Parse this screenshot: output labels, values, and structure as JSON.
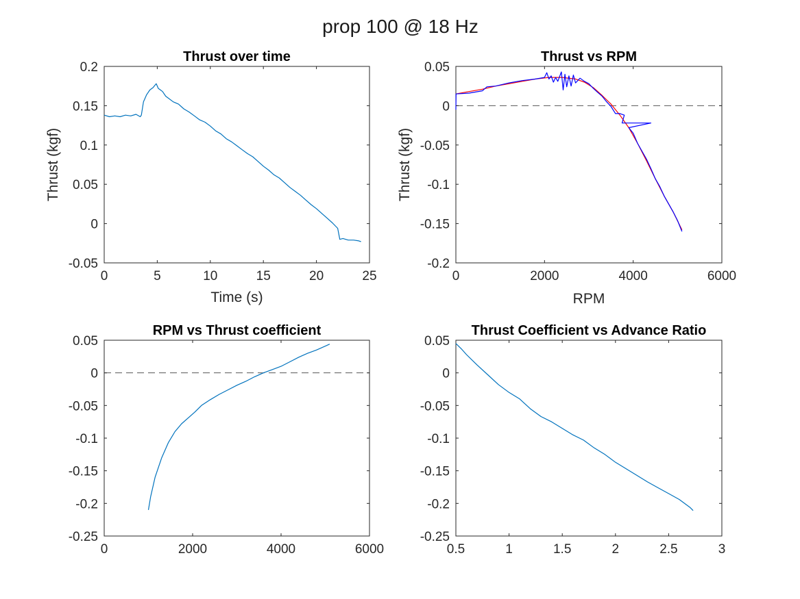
{
  "figure": {
    "title": "prop 100 @ 18 Hz"
  },
  "colors": {
    "matlab_blue": "#0072bd",
    "pure_blue": "#0000ff",
    "red": "#ff0000",
    "zero_line": "#555555",
    "axis": "#262626"
  },
  "chart_data": [
    {
      "type": "line",
      "title": "Thrust over time",
      "xlabel": "Time (s)",
      "ylabel": "Thrust (kgf)",
      "xlim": [
        0,
        25
      ],
      "ylim": [
        -0.05,
        0.2
      ],
      "xticks": [
        0,
        5,
        10,
        15,
        20,
        25
      ],
      "xtick_labels": [
        "0",
        "5",
        "10",
        "15",
        "20",
        "25"
      ],
      "yticks": [
        -0.05,
        0,
        0.05,
        0.1,
        0.15,
        0.2
      ],
      "ytick_labels": [
        "-0.05",
        "0",
        "0.05",
        "0.1",
        "0.15",
        "0.2"
      ],
      "grid": false,
      "series": [
        {
          "color": "#0072bd",
          "x": [
            0,
            0.5,
            1,
            1.5,
            2,
            2.5,
            3,
            3.4,
            3.5,
            3.7,
            4,
            4.3,
            4.6,
            4.9,
            5.1,
            5.3,
            5.5,
            5.8,
            6,
            6.5,
            7,
            7.5,
            8,
            8.5,
            9,
            9.5,
            10,
            10.5,
            11,
            11.5,
            12,
            12.5,
            13,
            13.5,
            14,
            14.5,
            15,
            15.5,
            16,
            16.5,
            17,
            17.5,
            18,
            18.5,
            19,
            19.5,
            20,
            20.5,
            21,
            21.5,
            22,
            22.2,
            22.5,
            23,
            23.5,
            24,
            24.2
          ],
          "y": [
            0.138,
            0.136,
            0.137,
            0.136,
            0.138,
            0.137,
            0.139,
            0.136,
            0.138,
            0.155,
            0.164,
            0.17,
            0.173,
            0.178,
            0.172,
            0.17,
            0.168,
            0.162,
            0.16,
            0.155,
            0.152,
            0.146,
            0.142,
            0.137,
            0.132,
            0.129,
            0.124,
            0.118,
            0.114,
            0.108,
            0.104,
            0.099,
            0.094,
            0.089,
            0.085,
            0.079,
            0.073,
            0.068,
            0.062,
            0.058,
            0.052,
            0.046,
            0.041,
            0.036,
            0.03,
            0.024,
            0.019,
            0.013,
            0.007,
            0.001,
            -0.006,
            -0.02,
            -0.019,
            -0.021,
            -0.021,
            -0.022,
            -0.023
          ]
        }
      ]
    },
    {
      "type": "line",
      "title": "Thrust vs RPM",
      "xlabel": "RPM",
      "ylabel": "Thrust (kgf)",
      "xlim": [
        0,
        6000
      ],
      "ylim": [
        -0.2,
        0.05
      ],
      "xticks": [
        0,
        2000,
        4000,
        6000
      ],
      "xtick_labels": [
        "0",
        "2000",
        "4000",
        "6000"
      ],
      "yticks": [
        -0.2,
        -0.15,
        -0.1,
        -0.05,
        0,
        0.05
      ],
      "ytick_labels": [
        "-0.2",
        "-0.15",
        "-0.1",
        "-0.05",
        "0",
        "0.05"
      ],
      "grid": false,
      "reference_line": {
        "y": 0,
        "style": "dashed"
      },
      "series": [
        {
          "color": "#ff0000",
          "x": [
            0,
            300,
            600,
            900,
            1200,
            1500,
            1800,
            2100,
            2400,
            2700,
            2900,
            3100,
            3300,
            3500,
            3700,
            3900,
            4100,
            4300,
            4500,
            4700,
            4900,
            5100
          ],
          "y": [
            0.015,
            0.018,
            0.021,
            0.025,
            0.028,
            0.031,
            0.034,
            0.036,
            0.036,
            0.034,
            0.03,
            0.023,
            0.013,
            0.002,
            -0.012,
            -0.028,
            -0.048,
            -0.07,
            -0.093,
            -0.115,
            -0.135,
            -0.158
          ]
        },
        {
          "color": "#0000ff",
          "x": [
            0,
            5,
            300,
            600,
            700,
            900,
            1200,
            1500,
            1800,
            2000,
            2050,
            2100,
            2150,
            2200,
            2250,
            2300,
            2380,
            2420,
            2460,
            2500,
            2550,
            2600,
            2650,
            2700,
            2800,
            2900,
            3000,
            3100,
            3200,
            3300,
            3400,
            3500,
            3600,
            3700,
            3800,
            3750,
            4400,
            3900,
            4000,
            4100,
            4200,
            4300,
            4400,
            4500,
            4600,
            4700,
            4800,
            4900,
            5000,
            5100
          ],
          "y": [
            -0.005,
            0.015,
            0.016,
            0.019,
            0.024,
            0.025,
            0.029,
            0.032,
            0.034,
            0.036,
            0.042,
            0.034,
            0.038,
            0.03,
            0.036,
            0.031,
            0.043,
            0.02,
            0.04,
            0.024,
            0.038,
            0.025,
            0.039,
            0.029,
            0.035,
            0.031,
            0.028,
            0.022,
            0.017,
            0.012,
            0.005,
            -0.001,
            -0.01,
            -0.01,
            -0.012,
            -0.022,
            -0.022,
            -0.028,
            -0.035,
            -0.048,
            -0.058,
            -0.068,
            -0.08,
            -0.093,
            -0.103,
            -0.115,
            -0.125,
            -0.135,
            -0.146,
            -0.16
          ]
        }
      ]
    },
    {
      "type": "line",
      "title": "RPM vs Thrust coefficient",
      "xlabel": "",
      "ylabel": "",
      "xlim": [
        0,
        6000
      ],
      "ylim": [
        -0.25,
        0.05
      ],
      "xticks": [
        0,
        2000,
        4000,
        6000
      ],
      "xtick_labels": [
        "0",
        "2000",
        "4000",
        "6000"
      ],
      "yticks": [
        -0.25,
        -0.2,
        -0.15,
        -0.1,
        -0.05,
        0,
        0.05
      ],
      "ytick_labels": [
        "-0.25",
        "-0.2",
        "-0.15",
        "-0.1",
        "-0.05",
        "0",
        "0.05"
      ],
      "grid": false,
      "reference_line": {
        "y": 0,
        "style": "dashed"
      },
      "series": [
        {
          "color": "#0072bd",
          "x": [
            1000,
            1050,
            1150,
            1300,
            1450,
            1600,
            1750,
            1900,
            2050,
            2200,
            2400,
            2600,
            2800,
            3000,
            3200,
            3400,
            3600,
            3800,
            4000,
            4200,
            4400,
            4600,
            4800,
            5000,
            5100
          ],
          "y": [
            -0.21,
            -0.19,
            -0.16,
            -0.13,
            -0.107,
            -0.09,
            -0.078,
            -0.069,
            -0.06,
            -0.05,
            -0.041,
            -0.033,
            -0.026,
            -0.019,
            -0.013,
            -0.006,
            0.0,
            0.005,
            0.01,
            0.017,
            0.024,
            0.03,
            0.035,
            0.041,
            0.044
          ]
        }
      ]
    },
    {
      "type": "line",
      "title": "Thrust Coefficient vs Advance Ratio",
      "xlabel": "",
      "ylabel": "",
      "xlim": [
        0.5,
        3
      ],
      "ylim": [
        -0.25,
        0.05
      ],
      "xticks": [
        0.5,
        1,
        1.5,
        2,
        2.5,
        3
      ],
      "xtick_labels": [
        "0.5",
        "1",
        "1.5",
        "2",
        "2.5",
        "3"
      ],
      "yticks": [
        -0.25,
        -0.2,
        -0.15,
        -0.1,
        -0.05,
        0,
        0.05
      ],
      "ytick_labels": [
        "-0.25",
        "-0.2",
        "-0.15",
        "-0.1",
        "-0.05",
        "0",
        "0.05"
      ],
      "grid": false,
      "series": [
        {
          "color": "#0072bd",
          "x": [
            0.5,
            0.55,
            0.6,
            0.7,
            0.8,
            0.9,
            1.0,
            1.1,
            1.2,
            1.3,
            1.4,
            1.5,
            1.6,
            1.7,
            1.8,
            1.9,
            2.0,
            2.1,
            2.2,
            2.3,
            2.4,
            2.5,
            2.6,
            2.7,
            2.73
          ],
          "y": [
            0.045,
            0.037,
            0.028,
            0.012,
            -0.003,
            -0.018,
            -0.03,
            -0.04,
            -0.055,
            -0.067,
            -0.075,
            -0.085,
            -0.095,
            -0.103,
            -0.115,
            -0.125,
            -0.137,
            -0.147,
            -0.157,
            -0.167,
            -0.176,
            -0.185,
            -0.194,
            -0.206,
            -0.211
          ]
        }
      ]
    }
  ]
}
